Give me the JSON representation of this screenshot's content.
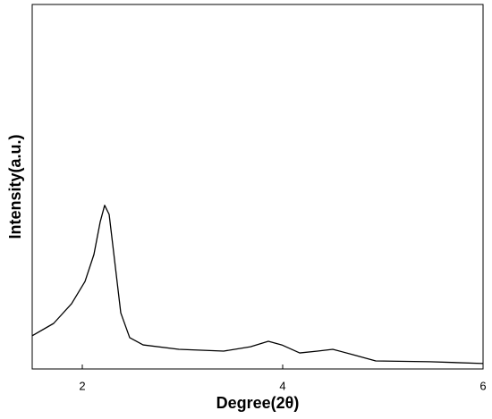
{
  "chart_data": {
    "type": "line",
    "xlabel": "Degree(2θ)",
    "ylabel": "Intensity(a.u.)",
    "x": [
      1.5,
      1.714,
      1.893,
      2.027,
      2.116,
      2.179,
      2.223,
      2.268,
      2.321,
      2.384,
      2.473,
      2.607,
      2.964,
      3.411,
      3.679,
      3.857,
      3.991,
      4.17,
      4.348,
      4.5,
      4.705,
      4.929,
      5.464,
      6.0
    ],
    "series": [
      {
        "color": "#000000",
        "values": [
          9.1,
          12.5,
          17.9,
          24,
          31.4,
          40.4,
          44.9,
          42.4,
          30.1,
          15.4,
          8.6,
          6.6,
          5.4,
          4.9,
          6.1,
          7.6,
          6.6,
          4.4,
          4.9,
          5.4,
          3.9,
          2.2,
          2.0,
          1.5
        ]
      }
    ],
    "xlim": [
      1.5,
      6
    ],
    "xticks": [
      2,
      4,
      6
    ],
    "ylim": [
      0,
      100
    ]
  }
}
